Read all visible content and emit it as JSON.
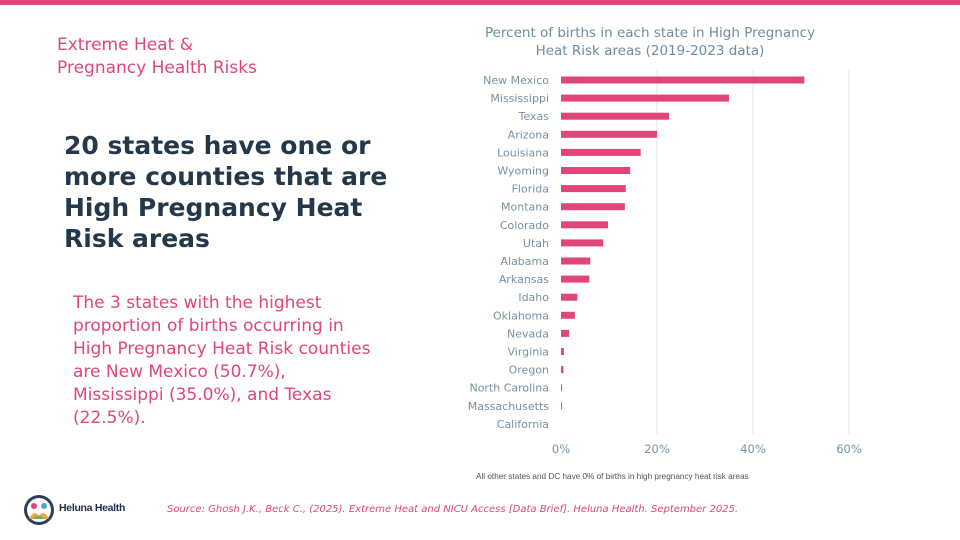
{
  "slide": {
    "section_title": "Extreme Heat &\nPregnancy Health Risks",
    "headline": "20 states have one or more counties that are High Pregnancy Heat Risk areas",
    "summary": "The 3 states with the highest proportion of births occurring in High Pregnancy Heat Risk counties are New Mexico (50.7%), Mississippi (35.0%), and Texas (22.5%).",
    "footnote": "All other states and DC have 0% of births in high pregnancy heat risk areas",
    "source": "Source: Ghosh J.K., Beck C., (2025). Extreme Heat and NICU Access [Data Brief]. Heluna Health. September 2025.",
    "logo_text": "Heluna Health",
    "logo_icon": "heluna-health-logo-icon"
  },
  "colors": {
    "accent": "#e0457b",
    "headline": "#23384a",
    "bar": "#e0457b",
    "grid": "#dfe5ea",
    "axis_text": "#7791a3"
  },
  "chart_data": {
    "type": "bar",
    "orientation": "horizontal",
    "title": "Percent of births in each state in High Pregnancy Heat Risk areas (2019-2023 data)",
    "xlabel": "",
    "ylabel": "",
    "categories": [
      "New Mexico",
      "Mississippi",
      "Texas",
      "Arizona",
      "Louisiana",
      "Wyoming",
      "Florida",
      "Montana",
      "Colorado",
      "Utah",
      "Alabama",
      "Arkansas",
      "Idaho",
      "Oklahoma",
      "Nevada",
      "Virginia",
      "Oregon",
      "North Carolina",
      "Massachusetts",
      "California"
    ],
    "values": [
      50.7,
      35.0,
      22.5,
      20.0,
      16.6,
      14.4,
      13.5,
      13.3,
      9.8,
      8.8,
      6.1,
      5.9,
      3.4,
      2.9,
      1.7,
      0.6,
      0.5,
      0.2,
      0.2,
      0.0
    ],
    "xlim": [
      0,
      60
    ],
    "xticks": [
      0,
      20,
      40,
      60
    ],
    "xtick_labels": [
      "0%",
      "20%",
      "40%",
      "60%"
    ],
    "grid": "vertical",
    "legend": "none"
  }
}
